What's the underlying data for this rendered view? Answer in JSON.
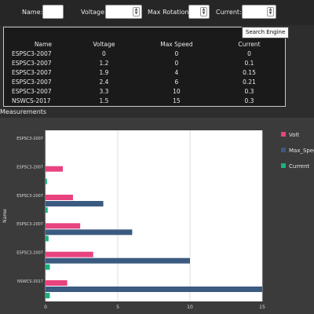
{
  "filters": {
    "name_label": "Name:",
    "voltage_label": "Voltage:",
    "max_rotation_label": "Max Rotation:",
    "current_label": "Current:",
    "name_value": "",
    "voltage_value": "",
    "max_rotation_value": "",
    "current_value": ""
  },
  "tooltip": "Search Engine",
  "table": {
    "headers": [
      "Name",
      "Voltage",
      "Max Speed",
      "Current"
    ],
    "rows": [
      [
        "ESPSC3-2007",
        "0",
        "0",
        "0"
      ],
      [
        "ESPSC3-2007",
        "1.2",
        "0",
        "0.1"
      ],
      [
        "ESPSC3-2007",
        "1.9",
        "4",
        "0.15"
      ],
      [
        "ESPSC3-2007",
        "2.4",
        "6",
        "0.21"
      ],
      [
        "ESPSC3-2007",
        "3.3",
        "10",
        "0.3"
      ],
      [
        "NSWCS-2017",
        "1.5",
        "15",
        "0.3"
      ]
    ]
  },
  "section_title": "Measurements",
  "chart_data": {
    "type": "bar",
    "orientation": "horizontal",
    "categories": [
      "ESPSC3-2007",
      "ESPSC3-2007",
      "ESPSC3-2007",
      "ESPSC3-2007",
      "ESPSC3-2007",
      "NSWCS-2017"
    ],
    "series": [
      {
        "name": "Volt",
        "color": "#e8437f",
        "values": [
          0,
          1.2,
          1.9,
          2.4,
          3.3,
          1.5
        ]
      },
      {
        "name": "Max_Speed",
        "color": "#3b5a80",
        "values": [
          0,
          0,
          4,
          6,
          10,
          15
        ]
      },
      {
        "name": "Current",
        "color": "#19b27b",
        "values": [
          0,
          0.1,
          0.15,
          0.21,
          0.3,
          0.3
        ]
      }
    ],
    "xlim": [
      0,
      15
    ],
    "xticks": [
      "0",
      "5",
      "10",
      "15"
    ],
    "ylabel": "Name",
    "legend": "right",
    "grid": true
  }
}
